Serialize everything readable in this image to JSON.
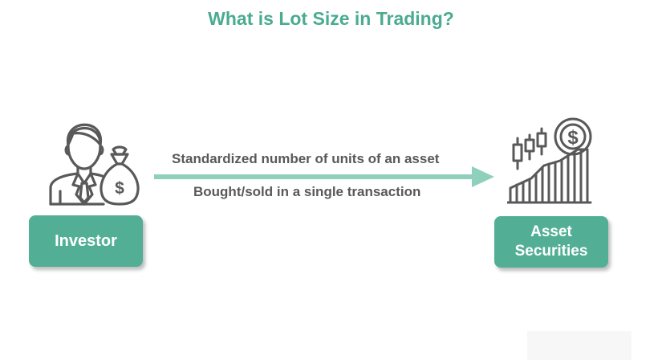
{
  "title": "What is Lot Size in Trading?",
  "investor": {
    "label": "Investor"
  },
  "asset": {
    "label_line1": "Asset",
    "label_line2": "Securities"
  },
  "arrow": {
    "top_label": "Standardized number of units of an asset",
    "bottom_label": "Bought/sold in a single transaction"
  },
  "colors": {
    "accent": "#4aab91",
    "box": "#52af95",
    "arrow": "#8fd0bd",
    "icon_stroke": "#595959",
    "text": "#595959"
  },
  "icons": {
    "investor": "investor-with-money-bag-icon",
    "asset": "candlestick-growth-chart-with-coin-icon"
  }
}
